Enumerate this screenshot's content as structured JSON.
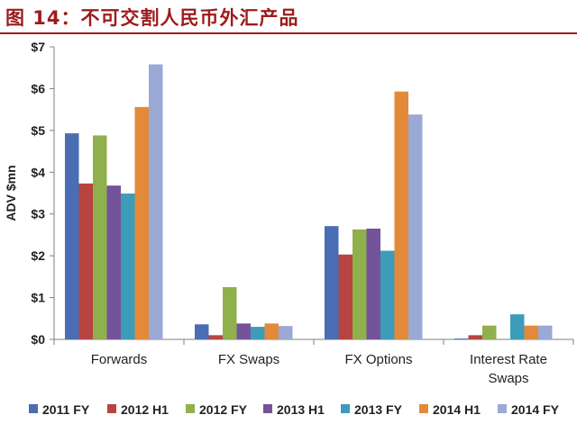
{
  "figure": {
    "title": "图 14：不可交割人民币外汇产品"
  },
  "chart_data": {
    "type": "bar",
    "ylabel": "ADV $mn",
    "ylim": [
      0,
      7
    ],
    "yticks": [
      "$0",
      "$1",
      "$2",
      "$3",
      "$4",
      "$5",
      "$6",
      "$7"
    ],
    "grid": false,
    "legend": "bottom",
    "categories": [
      "Forwards",
      "FX Swaps",
      "FX Options",
      "Interest Rate Swaps"
    ],
    "category_lines": [
      [
        "Forwards"
      ],
      [
        "FX Swaps"
      ],
      [
        "FX Options"
      ],
      [
        "Interest Rate",
        "Swaps"
      ]
    ],
    "series": [
      {
        "name": "2011 FY",
        "color": "#4a6db3",
        "values": [
          4.93,
          0.36,
          2.71,
          0.02
        ]
      },
      {
        "name": "2012 H1",
        "color": "#b84442",
        "values": [
          3.73,
          0.1,
          2.03,
          0.1
        ]
      },
      {
        "name": "2012 FY",
        "color": "#8fb04d",
        "values": [
          4.88,
          1.25,
          2.63,
          0.33
        ]
      },
      {
        "name": "2013 H1",
        "color": "#74539a",
        "values": [
          3.68,
          0.38,
          2.65,
          0.0
        ]
      },
      {
        "name": "2013 FY",
        "color": "#3d9db9",
        "values": [
          3.49,
          0.3,
          2.12,
          0.6
        ]
      },
      {
        "name": "2014 H1",
        "color": "#e38a3a",
        "values": [
          5.56,
          0.38,
          5.93,
          0.33
        ]
      },
      {
        "name": "2014 FY",
        "color": "#9aa9d6",
        "values": [
          6.58,
          0.32,
          5.38,
          0.33
        ]
      }
    ]
  }
}
